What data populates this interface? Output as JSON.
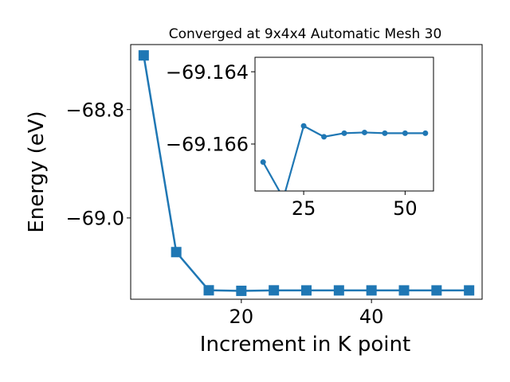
{
  "chart_data": [
    {
      "type": "line",
      "title": "Converged at 9x4x4 Automatic Mesh 30",
      "xlabel": "Increment in K point",
      "ylabel": "Energy (eV)",
      "xlim": [
        3,
        57
      ],
      "ylim": [
        -69.15,
        -68.68
      ],
      "xticks": [
        20,
        40
      ],
      "xtick_labels": [
        "20",
        "40"
      ],
      "yticks": [
        -69.0,
        -68.8
      ],
      "ytick_labels": [
        "−69.0",
        "−68.8"
      ],
      "marker": "square",
      "color": "#1f77b4",
      "grid": false,
      "series": [
        {
          "x": [
            5,
            10,
            15,
            20,
            25,
            30,
            35,
            40,
            45,
            50,
            55
          ],
          "y": [
            -68.7,
            -69.063,
            -69.1335,
            -69.1345,
            -69.1336,
            -69.1337,
            -69.1337,
            -69.1337,
            -69.1337,
            -69.1337,
            -69.1337
          ]
        }
      ]
    },
    {
      "type": "line",
      "role": "inset",
      "xlim": [
        13,
        57
      ],
      "ylim": [
        -69.1673,
        -69.1636
      ],
      "xticks": [
        25,
        50
      ],
      "xtick_labels": [
        "25",
        "50"
      ],
      "yticks": [
        -69.166,
        -69.164
      ],
      "ytick_labels": [
        "−69.166",
        "−69.164"
      ],
      "marker": "circle",
      "color": "#1f77b4",
      "series": [
        {
          "x": [
            15,
            20,
            25,
            30,
            35,
            40,
            45,
            50,
            55
          ],
          "y": [
            -69.1665,
            -69.1675,
            -69.1655,
            -69.1658,
            -69.1657,
            -69.16568,
            -69.1657,
            -69.1657,
            -69.1657
          ]
        }
      ]
    }
  ]
}
